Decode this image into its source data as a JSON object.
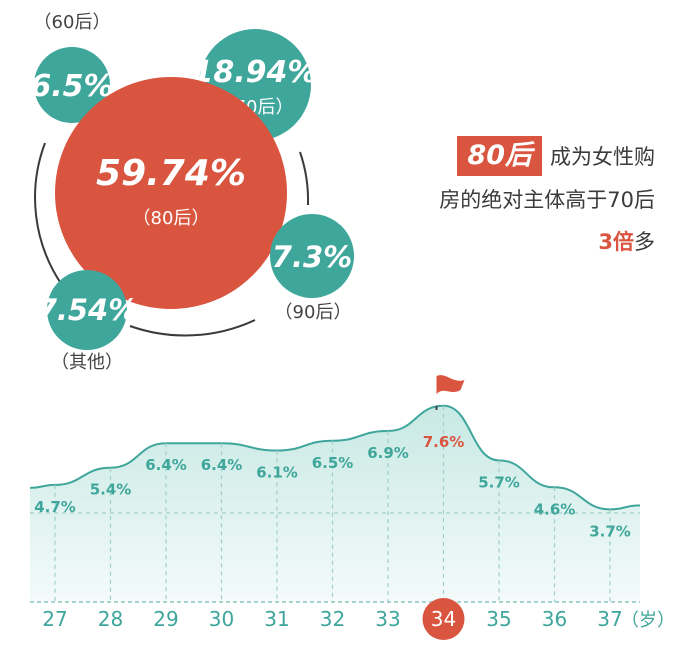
{
  "colors": {
    "teal": "#3fa69b",
    "teal_light": "#c8e9e4",
    "accent": "#d9553f",
    "text": "#3b3b3b",
    "grey_text": "#555555"
  },
  "bubbles": [
    {
      "value": "6.5%",
      "group": "（60后）",
      "color": "teal"
    },
    {
      "value": "18.94%",
      "group": "（70后）",
      "color": "teal"
    },
    {
      "value": "59.74%",
      "group": "（80后）",
      "color": "accent"
    },
    {
      "value": "7.3%",
      "group": "（90后）",
      "color": "teal"
    },
    {
      "value": "7.54%",
      "group": "（其他）",
      "color": "teal"
    }
  ],
  "callout": {
    "badge": "80后",
    "line1": "成为女性购",
    "line2": "房的绝对主体高于70后",
    "emphasis": "3倍",
    "line3_rest": "多"
  },
  "axis_unit": "（岁）",
  "chart_data": [
    {
      "type": "pie",
      "categories": [
        "60后",
        "70后",
        "80后",
        "90后",
        "其他"
      ],
      "values": [
        6.5,
        18.94,
        59.74,
        7.3,
        7.54
      ]
    },
    {
      "type": "area",
      "x": [
        27,
        28,
        29,
        30,
        31,
        32,
        33,
        34,
        35,
        36,
        37
      ],
      "tick_labels": [
        "27",
        "28",
        "29",
        "30",
        "31",
        "32",
        "33",
        "34",
        "35",
        "36",
        "37"
      ],
      "values": [
        4.7,
        5.4,
        6.4,
        6.4,
        6.1,
        6.5,
        6.9,
        7.6,
        5.7,
        4.6,
        3.7
      ],
      "value_labels": [
        "4.7%",
        "5.4%",
        "6.4%",
        "6.4%",
        "6.1%",
        "6.5%",
        "6.9%",
        "7.6%",
        "5.7%",
        "4.6%",
        "3.7%"
      ],
      "highlight_index": 7,
      "xlabel": "（岁）",
      "grid": true
    }
  ]
}
